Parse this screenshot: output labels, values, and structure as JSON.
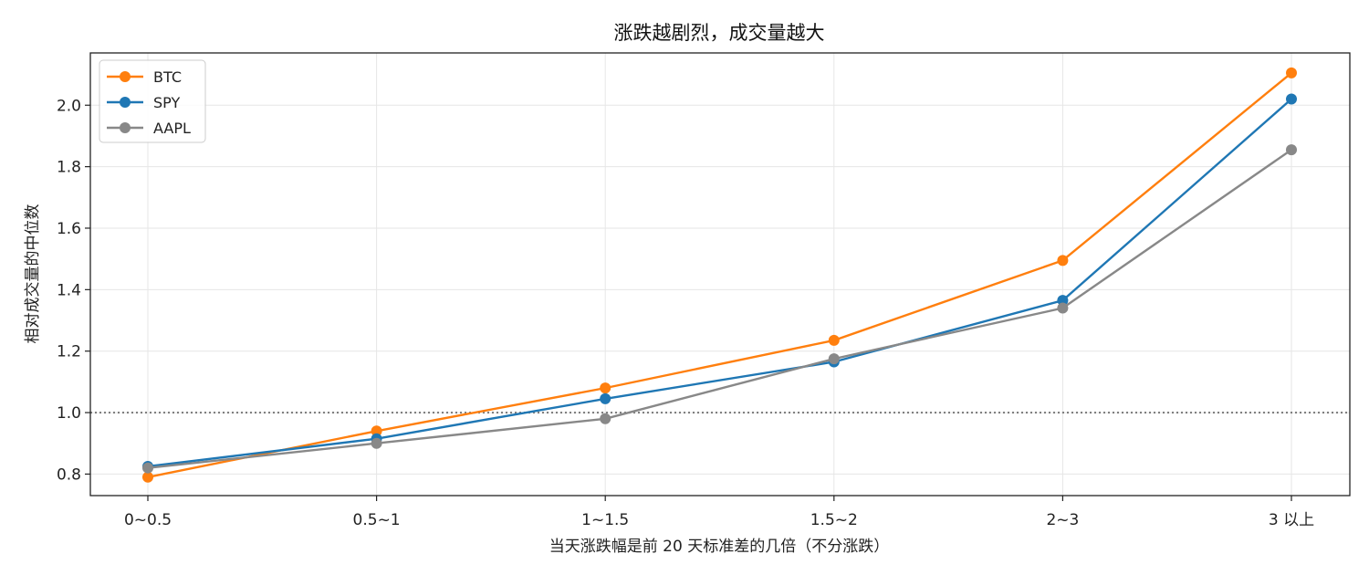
{
  "chart_data": {
    "type": "line",
    "title": "涨跌越剧烈，成交量越大",
    "xlabel": "当天涨跌幅是前 20 天标准差的几倍（不分涨跌）",
    "ylabel": "相对成交量的中位数",
    "categories": [
      "0~0.5",
      "0.5~1",
      "1~1.5",
      "1.5~2",
      "2~3",
      "3 以上"
    ],
    "ylim": [
      0.73,
      2.17
    ],
    "yticks": [
      0.8,
      1.0,
      1.2,
      1.4,
      1.6,
      1.8,
      2.0
    ],
    "grid": true,
    "legend_position": "top-left",
    "reference_line": {
      "y": 1.0,
      "style": "dotted",
      "color": "#808080"
    },
    "series": [
      {
        "name": "BTC",
        "color": "#ff7f0e",
        "values": [
          0.79,
          0.94,
          1.08,
          1.235,
          1.495,
          2.105
        ]
      },
      {
        "name": "SPY",
        "color": "#1f77b4",
        "values": [
          0.825,
          0.915,
          1.045,
          1.165,
          1.365,
          2.02
        ]
      },
      {
        "name": "AAPL",
        "color": "#888888",
        "values": [
          0.82,
          0.9,
          0.98,
          1.175,
          1.34,
          1.855
        ]
      }
    ]
  }
}
